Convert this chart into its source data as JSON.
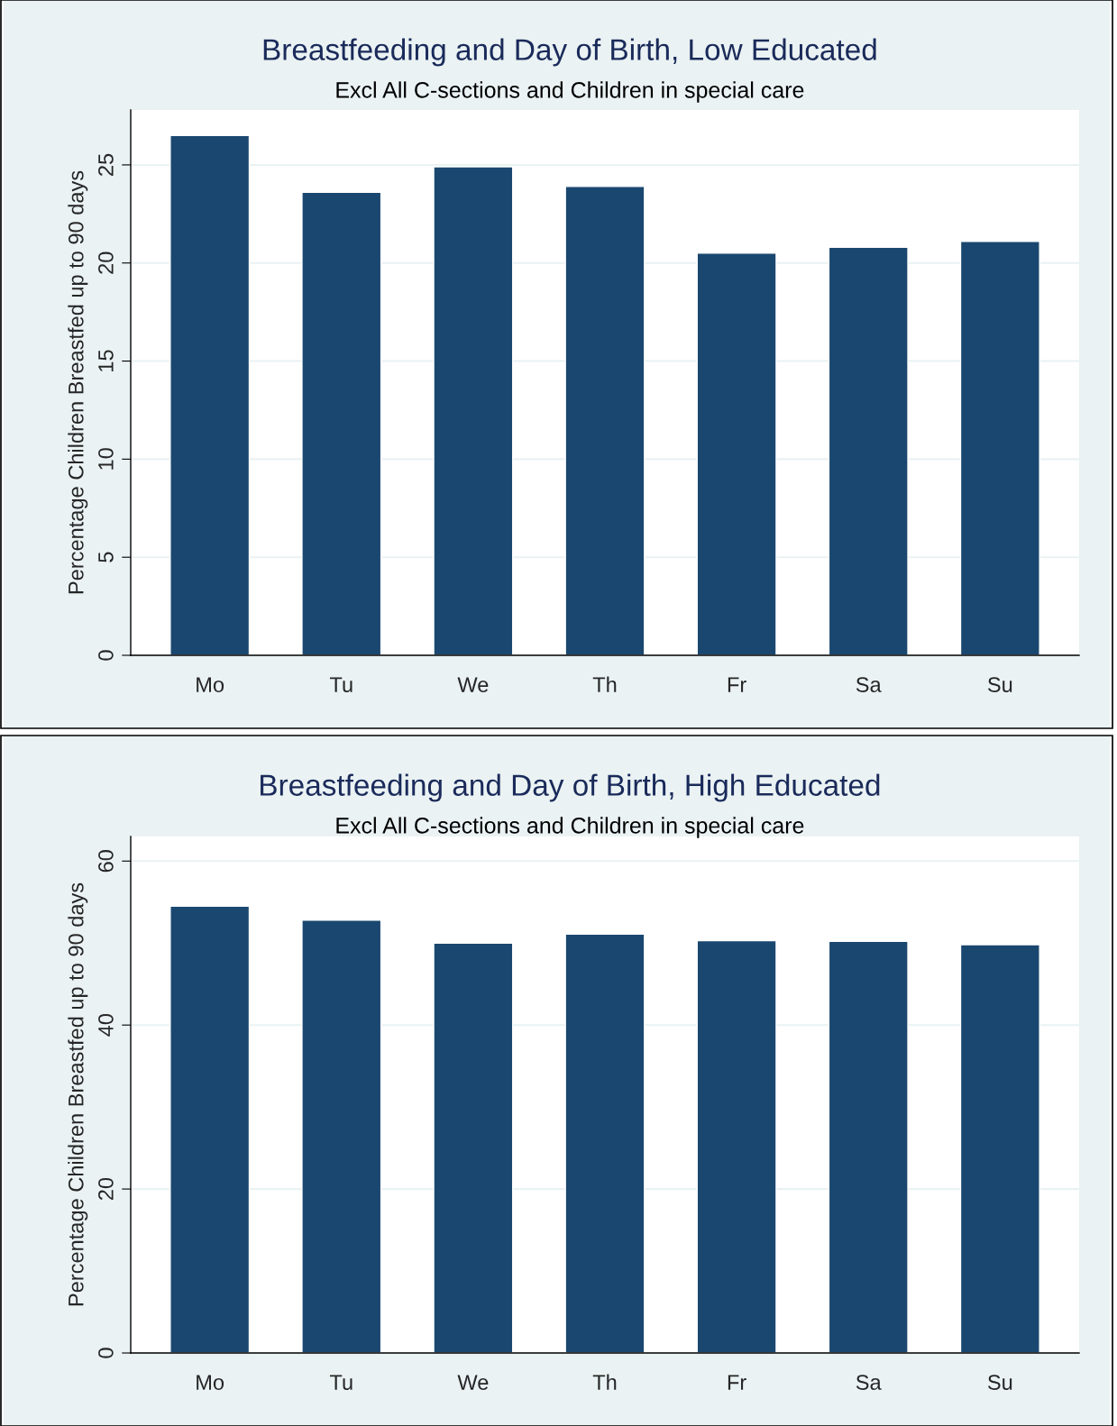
{
  "chart_data": [
    {
      "type": "bar",
      "title": "Breastfeeding and Day of Birth, Low Educated",
      "subtitle": "Excl All C-sections and Children in special care",
      "ylabel": "Percentage Children Breastfed up to 90 days",
      "categories": [
        "Mo",
        "Tu",
        "We",
        "Th",
        "Fr",
        "Sa",
        "Su"
      ],
      "values": [
        26.5,
        23.6,
        24.9,
        23.9,
        20.5,
        20.8,
        21.1
      ],
      "color": "#1a476f",
      "ylim": [
        0,
        27.8
      ],
      "yticks": [
        0,
        5,
        10,
        15,
        20,
        25
      ],
      "grid": "y"
    },
    {
      "type": "bar",
      "title": "Breastfeeding and Day of Birth, High Educated",
      "subtitle": "Excl All C-sections and Children in special care",
      "ylabel": "Percentage Children Breastfed up to 90 days",
      "categories": [
        "Mo",
        "Tu",
        "We",
        "Th",
        "Fr",
        "Sa",
        "Su"
      ],
      "values": [
        54.5,
        52.8,
        50.0,
        51.1,
        50.3,
        50.2,
        49.8
      ],
      "color": "#1a476f",
      "ylim": [
        0,
        63
      ],
      "yticks": [
        0,
        20,
        40,
        60
      ],
      "grid": "y"
    }
  ]
}
